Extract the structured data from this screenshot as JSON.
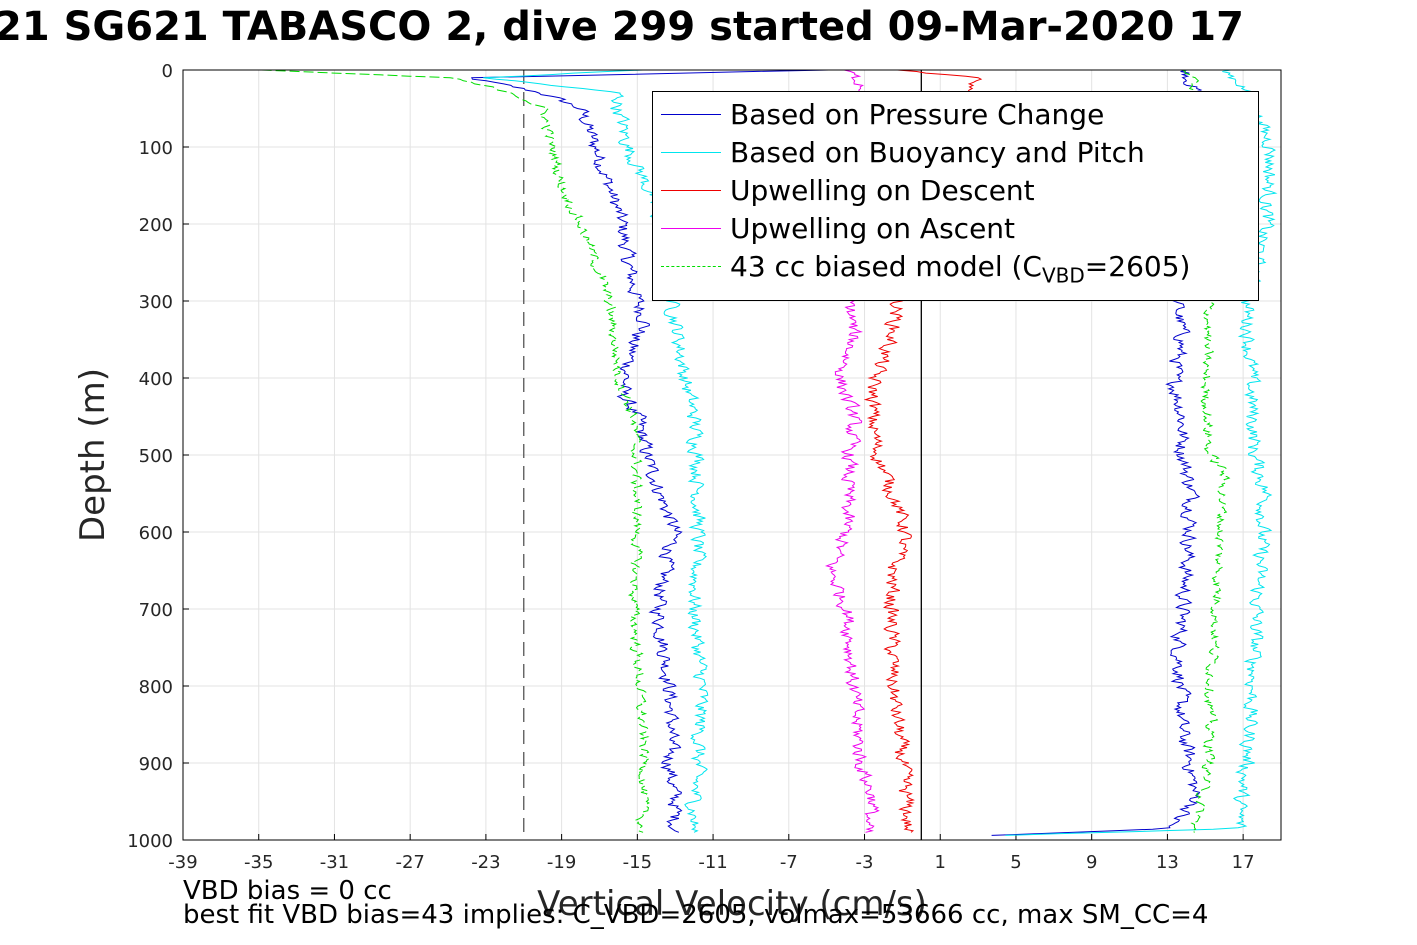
{
  "title": "21 SG621 TABASCO 2, dive 299 started 09-Mar-2020 17",
  "notes": {
    "vbd_bias": "VBD bias = 0 cc",
    "best_fit": "best fit VBD bias=43 implies: C_VBD=2605, volmax=53666 cc, max SM_CC=4"
  },
  "legend": {
    "items": [
      {
        "label": "Based on Pressure Change",
        "color": "#0000cc",
        "dashed": false
      },
      {
        "label": "Based on Buoyancy and Pitch",
        "color": "#00e5ee",
        "dashed": false
      },
      {
        "label": "Upwelling on Descent",
        "color": "#ee0000",
        "dashed": false
      },
      {
        "label": "Upwelling on Ascent",
        "color": "#ee00ee",
        "dashed": false
      }
    ],
    "model": {
      "prefix": "43 cc biased model (C",
      "sub": "VBD",
      "suffix": "=2605)",
      "color": "#00dd00",
      "dashed": true
    }
  },
  "chart_data": {
    "type": "line",
    "xlabel": "Vertical Velocity (cm/s)",
    "ylabel": "Depth (m)",
    "xlim": [
      -39,
      19
    ],
    "ylim": [
      0,
      1000
    ],
    "y_reversed": true,
    "grid": true,
    "legend_position": "top-right",
    "xticks": [
      -39,
      -35,
      -31,
      -27,
      -23,
      -19,
      -15,
      -11,
      -7,
      -3,
      1,
      5,
      9,
      13,
      17
    ],
    "yticks": [
      0,
      100,
      200,
      300,
      400,
      500,
      600,
      700,
      800,
      900,
      1000
    ],
    "reference_lines": [
      {
        "x": -21,
        "style": "dashed",
        "color": "#555555"
      },
      {
        "x": 0,
        "style": "solid",
        "color": "#000000"
      }
    ],
    "series": [
      {
        "name": "Based on Pressure Change",
        "color": "#0000cc",
        "descent": [
          [
            0,
            -5
          ],
          [
            10,
            -24
          ],
          [
            30,
            -20
          ],
          [
            50,
            -18
          ],
          [
            100,
            -17.2
          ],
          [
            150,
            -16.5
          ],
          [
            200,
            -15.8
          ],
          [
            250,
            -15.5
          ],
          [
            300,
            -15
          ],
          [
            330,
            -14.5
          ],
          [
            350,
            -15.2
          ],
          [
            400,
            -15.6
          ],
          [
            420,
            -15.8
          ],
          [
            450,
            -15
          ],
          [
            500,
            -14.5
          ],
          [
            550,
            -13.8
          ],
          [
            600,
            -13
          ],
          [
            650,
            -13.6
          ],
          [
            700,
            -13.9
          ],
          [
            750,
            -13.6
          ],
          [
            800,
            -13.3
          ],
          [
            850,
            -13.2
          ],
          [
            900,
            -13.3
          ],
          [
            950,
            -13
          ],
          [
            990,
            -13
          ]
        ],
        "ascent": [
          [
            0,
            14
          ],
          [
            30,
            14.5
          ],
          [
            100,
            14.5
          ],
          [
            200,
            14
          ],
          [
            300,
            13.5
          ],
          [
            350,
            13.8
          ],
          [
            400,
            13.3
          ],
          [
            450,
            13.8
          ],
          [
            500,
            13.8
          ],
          [
            550,
            14.3
          ],
          [
            600,
            14.2
          ],
          [
            700,
            13.8
          ],
          [
            750,
            13.6
          ],
          [
            800,
            13.7
          ],
          [
            850,
            13.7
          ],
          [
            900,
            14.2
          ],
          [
            950,
            14.5
          ],
          [
            985,
            13
          ],
          [
            995,
            3
          ]
        ]
      },
      {
        "name": "Based on Buoyancy and Pitch",
        "color": "#00e5ee",
        "descent": [
          [
            0,
            -15
          ],
          [
            10,
            -23
          ],
          [
            30,
            -16
          ],
          [
            50,
            -16
          ],
          [
            100,
            -15.5
          ],
          [
            150,
            -14.5
          ],
          [
            200,
            -13.8
          ],
          [
            250,
            -13.5
          ],
          [
            300,
            -13.2
          ],
          [
            350,
            -12.8
          ],
          [
            400,
            -12.5
          ],
          [
            450,
            -12
          ],
          [
            500,
            -11.8
          ],
          [
            600,
            -11.8
          ],
          [
            700,
            -12
          ],
          [
            800,
            -11.6
          ],
          [
            900,
            -11.8
          ],
          [
            950,
            -12
          ],
          [
            990,
            -12
          ]
        ],
        "ascent": [
          [
            0,
            16
          ],
          [
            20,
            17
          ],
          [
            100,
            18.5
          ],
          [
            200,
            18.2
          ],
          [
            300,
            17.2
          ],
          [
            400,
            17.4
          ],
          [
            500,
            17.6
          ],
          [
            550,
            18.2
          ],
          [
            600,
            18
          ],
          [
            700,
            17.7
          ],
          [
            800,
            17.5
          ],
          [
            900,
            17.2
          ],
          [
            950,
            16.8
          ],
          [
            985,
            16.8
          ],
          [
            995,
            3
          ]
        ]
      },
      {
        "name": "Upwelling on Descent",
        "color": "#ee0000",
        "profile": [
          [
            0,
            -1
          ],
          [
            10,
            3
          ],
          [
            300,
            -1.2
          ],
          [
            350,
            -1.6
          ],
          [
            400,
            -2.5
          ],
          [
            450,
            -2.6
          ],
          [
            500,
            -2.3
          ],
          [
            550,
            -1.5
          ],
          [
            600,
            -0.8
          ],
          [
            650,
            -1.5
          ],
          [
            700,
            -1.6
          ],
          [
            800,
            -1.5
          ],
          [
            900,
            -1
          ],
          [
            950,
            -0.8
          ],
          [
            990,
            -0.7
          ]
        ]
      },
      {
        "name": "Upwelling on Ascent",
        "color": "#ee00ee",
        "profile": [
          [
            0,
            -4
          ],
          [
            20,
            -3
          ],
          [
            300,
            -3.8
          ],
          [
            350,
            -3.6
          ],
          [
            400,
            -4.3
          ],
          [
            450,
            -3.6
          ],
          [
            500,
            -3.8
          ],
          [
            600,
            -4
          ],
          [
            650,
            -4.8
          ],
          [
            700,
            -3.9
          ],
          [
            800,
            -3.6
          ],
          [
            900,
            -3.2
          ],
          [
            950,
            -2.5
          ],
          [
            990,
            -3
          ]
        ]
      },
      {
        "name": "43 cc biased model (C_VBD=2605)",
        "color": "#00dd00",
        "dashed": true,
        "descent": [
          [
            0,
            -35
          ],
          [
            10,
            -25
          ],
          [
            30,
            -21.5
          ],
          [
            50,
            -20
          ],
          [
            100,
            -19.5
          ],
          [
            150,
            -19
          ],
          [
            200,
            -18
          ],
          [
            250,
            -17.2
          ],
          [
            300,
            -16.5
          ],
          [
            350,
            -16.2
          ],
          [
            400,
            -16
          ],
          [
            450,
            -15.2
          ],
          [
            500,
            -15.1
          ],
          [
            600,
            -15
          ],
          [
            700,
            -15.2
          ],
          [
            800,
            -14.9
          ],
          [
            900,
            -14.6
          ],
          [
            990,
            -14.8
          ]
        ],
        "ascent": [
          [
            0,
            14
          ],
          [
            50,
            15
          ],
          [
            100,
            15.5
          ],
          [
            200,
            15.5
          ],
          [
            300,
            15.2
          ],
          [
            400,
            15
          ],
          [
            500,
            15.2
          ],
          [
            520,
            16
          ],
          [
            600,
            15.8
          ],
          [
            700,
            15.6
          ],
          [
            800,
            15.3
          ],
          [
            900,
            15.2
          ],
          [
            950,
            14.8
          ],
          [
            990,
            14.3
          ]
        ]
      }
    ]
  }
}
